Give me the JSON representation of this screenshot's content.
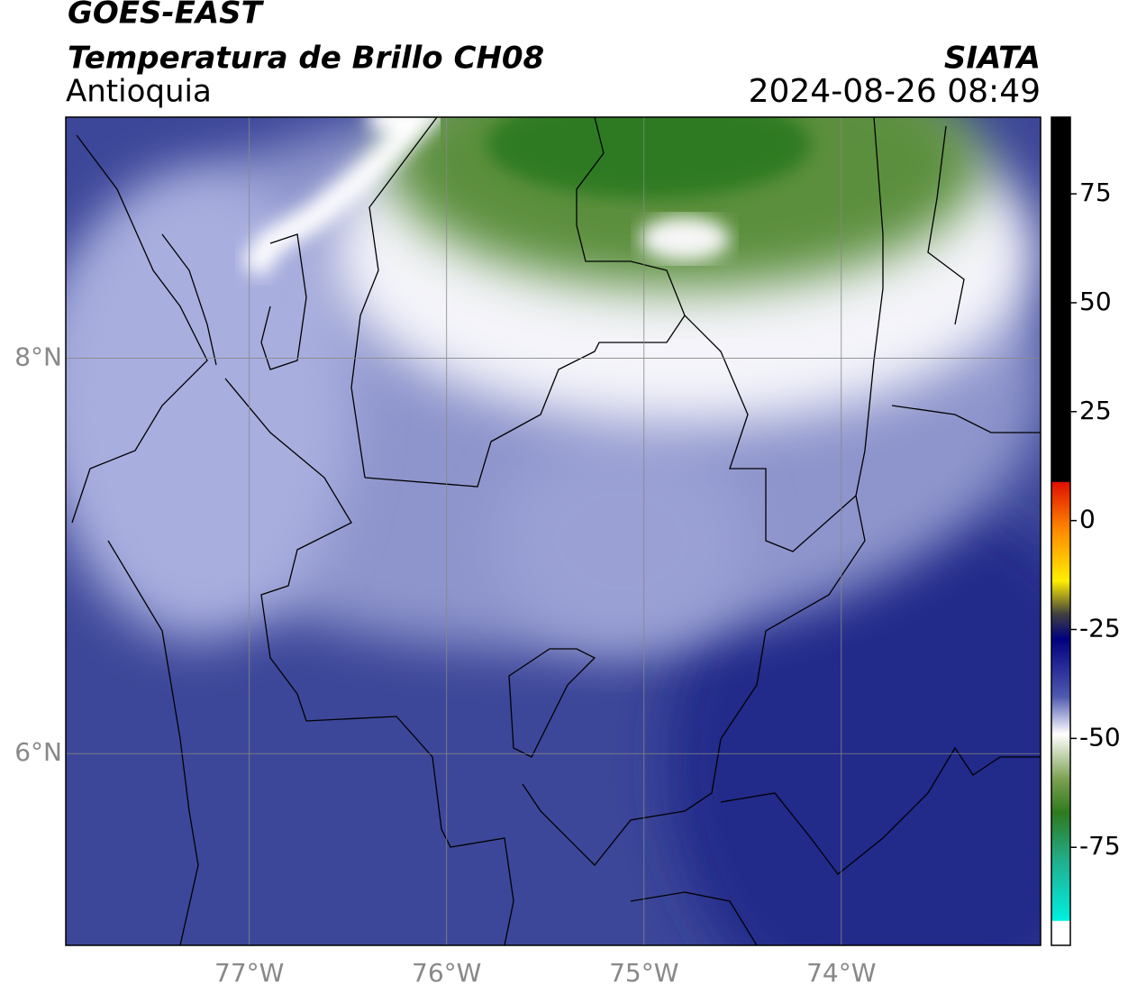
{
  "header": {
    "title": "GOES-EAST",
    "subtitle": "Temperatura de Brillo CH08",
    "region": "Antioquia",
    "source": "SIATA",
    "datetime": "2024-08-26 08:49"
  },
  "map": {
    "xlim": [
      -77.93,
      -72.99
    ],
    "ylim": [
      5.03,
      9.22
    ],
    "xticks": [
      {
        "value": -77,
        "label": "77°W"
      },
      {
        "value": -76,
        "label": "76°W"
      },
      {
        "value": -75,
        "label": "75°W"
      },
      {
        "value": -74,
        "label": "74°W"
      }
    ],
    "yticks": [
      {
        "value": 8,
        "label": "8°N"
      },
      {
        "value": 6,
        "label": "6°N"
      }
    ]
  },
  "colorbar": {
    "lim": [
      -97.5,
      92.6
    ],
    "ticks": [
      75,
      50,
      25,
      0,
      -25,
      -50,
      -75
    ]
  }
}
